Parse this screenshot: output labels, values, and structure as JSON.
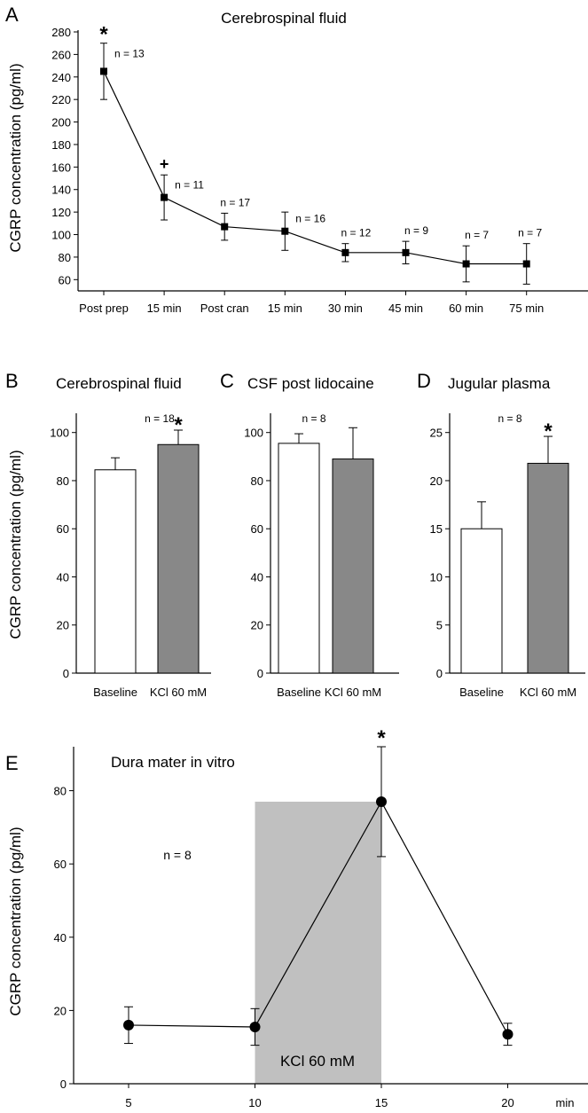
{
  "panelA": {
    "letter": "A",
    "title": "Cerebrospinal fluid",
    "ylabel": "CGRP concentration (pg/ml)",
    "chart_data": {
      "type": "line",
      "title": "Cerebrospinal fluid",
      "ylabel": "CGRP concentration (pg/ml)",
      "categories": [
        "Post prep",
        "15 min",
        "Post cran",
        "15 min",
        "30 min",
        "45 min",
        "60 min",
        "75 min"
      ],
      "values": [
        245,
        133,
        107,
        103,
        84,
        84,
        74,
        74
      ],
      "errors": [
        25,
        20,
        12,
        17,
        8,
        10,
        16,
        18
      ],
      "annotations": [
        "n = 13",
        "n = 11",
        "n = 17",
        "n = 16",
        "n = 12",
        "n = 9",
        "n = 7",
        "n = 7"
      ],
      "marks": [
        "*",
        "+",
        "",
        "",
        "",
        "",
        "",
        ""
      ],
      "ylim": [
        50,
        280
      ],
      "yticks": [
        60,
        80,
        100,
        120,
        140,
        160,
        180,
        200,
        220,
        240,
        260,
        280
      ]
    }
  },
  "panelB": {
    "letter": "B",
    "title": "Cerebrospinal fluid",
    "ylabel": "CGRP concentration (pg/ml)",
    "n_label": "n = 18",
    "star": "*",
    "chart_data": {
      "type": "bar",
      "title": "Cerebrospinal fluid",
      "ylabel": "CGRP concentration (pg/ml)",
      "categories": [
        "Baseline",
        "KCl 60 mM"
      ],
      "values": [
        84.5,
        95
      ],
      "errors": [
        5,
        6
      ],
      "colors": [
        "#ffffff",
        "#888888"
      ],
      "ylim": [
        0,
        108
      ],
      "yticks": [
        0,
        20,
        40,
        60,
        80,
        100
      ]
    }
  },
  "panelC": {
    "letter": "C",
    "title": "CSF post lidocaine",
    "n_label": "n = 8",
    "chart_data": {
      "type": "bar",
      "title": "CSF post lidocaine",
      "categories": [
        "Baseline",
        "KCl 60 mM"
      ],
      "values": [
        95.5,
        89
      ],
      "errors": [
        4,
        13
      ],
      "colors": [
        "#ffffff",
        "#888888"
      ],
      "ylim": [
        0,
        108
      ],
      "yticks": [
        0,
        20,
        40,
        60,
        80,
        100
      ]
    }
  },
  "panelD": {
    "letter": "D",
    "title": "Jugular plasma",
    "n_label": "n = 8",
    "star": "*",
    "chart_data": {
      "type": "bar",
      "title": "Jugular plasma",
      "categories": [
        "Baseline",
        "KCl 60 mM"
      ],
      "values": [
        15,
        21.8
      ],
      "errors": [
        2.8,
        2.8
      ],
      "colors": [
        "#ffffff",
        "#888888"
      ],
      "ylim": [
        0,
        27
      ],
      "yticks": [
        0,
        5,
        10,
        15,
        20,
        25
      ]
    }
  },
  "panelE": {
    "letter": "E",
    "title": "Dura mater in vitro",
    "ylabel": "CGRP concentration (pg/ml)",
    "n_label": "n = 8",
    "star": "*",
    "kcl_label": "KCl 60 mM",
    "x_unit": "min",
    "chart_data": {
      "type": "line",
      "title": "Dura mater in vitro",
      "ylabel": "CGRP concentration (pg/ml)",
      "x": [
        5,
        10,
        15,
        20
      ],
      "y": [
        16,
        15.5,
        77,
        13.5
      ],
      "errors": [
        5,
        5,
        15,
        3
      ],
      "shaded_region": {
        "x": [
          10,
          15
        ],
        "label": "KCl 60 mM",
        "color": "#c0c0c0"
      },
      "xlim": [
        2.5,
        22.5
      ],
      "xticks": [
        5,
        10,
        15,
        20
      ],
      "ylim": [
        0,
        92
      ],
      "yticks": [
        0,
        20,
        40,
        60,
        80
      ]
    }
  }
}
